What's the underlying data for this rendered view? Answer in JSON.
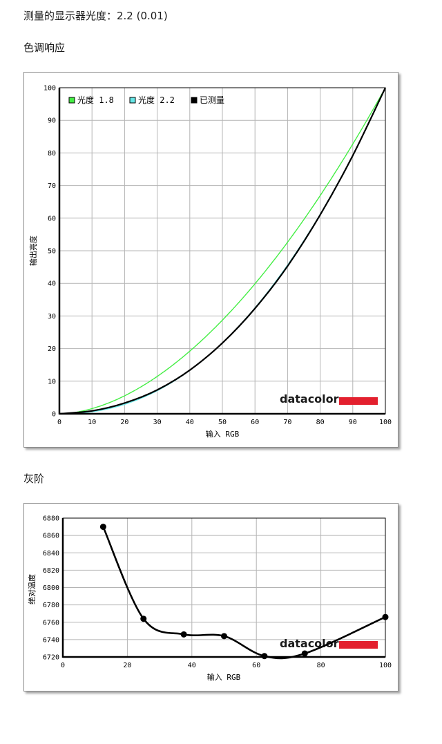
{
  "headings": {
    "gamma_result": "测量的显示器光度：2.2 (0.01)",
    "tone_response": "色调响应",
    "grayscale": "灰阶"
  },
  "colors": {
    "gamma18": "#44ee44",
    "gamma22": "#66e6e6",
    "measured": "#000000",
    "grid": "#b4b4b4",
    "brand_bar": "#e3202e"
  },
  "chart_data": [
    {
      "type": "line",
      "title": "",
      "xlabel": "输入 RGB",
      "ylabel": "输出亮度",
      "xlim": [
        0,
        100
      ],
      "ylim": [
        0,
        100
      ],
      "xticks": [
        0,
        10,
        20,
        30,
        40,
        50,
        60,
        70,
        80,
        90,
        100
      ],
      "yticks": [
        0,
        10,
        20,
        30,
        40,
        50,
        60,
        70,
        80,
        90,
        100
      ],
      "grid": true,
      "legend_position": "top-left",
      "brand_text": "datacolor",
      "series": [
        {
          "name": "光度 1.8",
          "color": "#44ee44",
          "gamma": 1.8,
          "x": [
            0,
            10,
            20,
            30,
            40,
            50,
            60,
            70,
            80,
            90,
            100
          ],
          "y": [
            0,
            1.6,
            5.5,
            11.5,
            19.2,
            28.7,
            39.9,
            52.6,
            66.9,
            82.7,
            100
          ]
        },
        {
          "name": "光度 2.2",
          "color": "#66e6e6",
          "gamma": 2.2,
          "x": [
            0,
            10,
            20,
            30,
            40,
            50,
            60,
            70,
            80,
            90,
            100
          ],
          "y": [
            0,
            0.6,
            2.9,
            7.1,
            13.3,
            21.8,
            32.5,
            45.6,
            61.2,
            79.3,
            100
          ]
        },
        {
          "name": "已测量",
          "color": "#000000",
          "gamma": 2.2,
          "x": [
            0,
            10,
            20,
            30,
            40,
            50,
            60,
            70,
            80,
            90,
            100
          ],
          "y": [
            0,
            0.9,
            3.3,
            7.3,
            13.4,
            21.7,
            32.3,
            45.3,
            61.0,
            79.2,
            100
          ]
        }
      ]
    },
    {
      "type": "line",
      "title": "",
      "xlabel": "输入 RGB",
      "ylabel": "绝对温度",
      "xlim": [
        0,
        100
      ],
      "ylim": [
        6720,
        6880
      ],
      "xticks": [
        0,
        20,
        40,
        60,
        80,
        100
      ],
      "yticks": [
        6720,
        6740,
        6760,
        6780,
        6800,
        6820,
        6840,
        6860,
        6880
      ],
      "grid": true,
      "brand_text": "datacolor",
      "series": [
        {
          "name": "",
          "color": "#000000",
          "x": [
            12.5,
            25,
            37.5,
            50,
            62.5,
            75,
            100
          ],
          "y": [
            6870,
            6764,
            6746,
            6744,
            6721,
            6724,
            6766
          ]
        }
      ]
    }
  ]
}
